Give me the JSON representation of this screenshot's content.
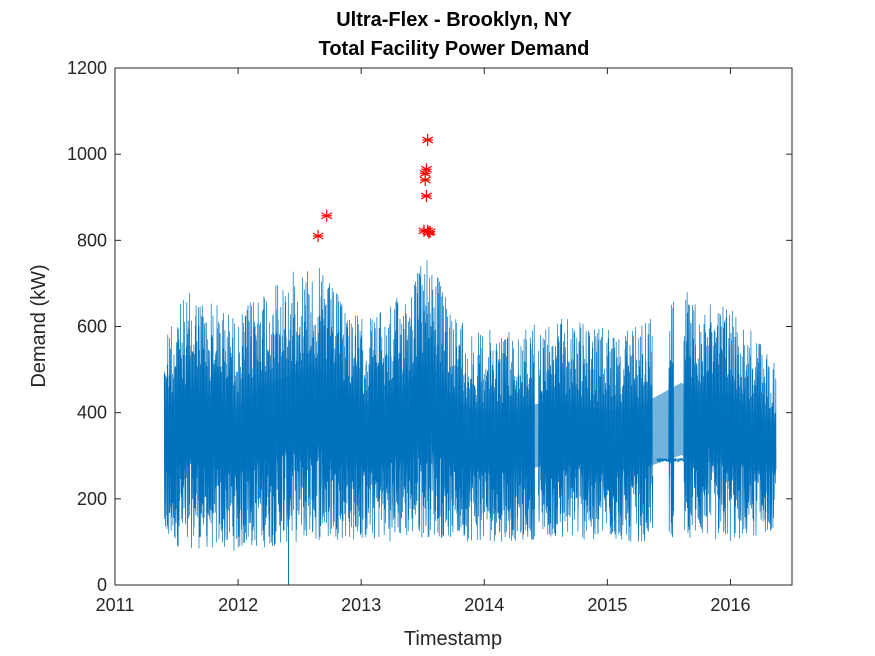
{
  "chart_data": {
    "type": "line",
    "title_lines": [
      "Ultra-Flex - Brooklyn, NY",
      "Total Facility Power Demand"
    ],
    "xlabel": "Timestamp",
    "ylabel": "Demand (kW)",
    "xlim": [
      2011,
      2016.5
    ],
    "ylim": [
      0,
      1200
    ],
    "xticks": [
      2011,
      2012,
      2013,
      2014,
      2015,
      2016
    ],
    "xtick_labels": [
      "2011",
      "2012",
      "2013",
      "2014",
      "2015",
      "2016"
    ],
    "yticks": [
      0,
      200,
      400,
      600,
      800,
      1000,
      1200
    ],
    "ytick_labels": [
      "0",
      "200",
      "400",
      "600",
      "800",
      "1000",
      "1200"
    ],
    "grid": false,
    "colors": {
      "series": "#0072bd",
      "outliers": "#ff0000",
      "axes": "#262626"
    },
    "series": [
      {
        "style": "line",
        "x_range": [
          2011.4,
          2016.37
        ],
        "gaps": [
          [
            2014.41,
            2014.44
          ],
          [
            2015.37,
            2015.4
          ]
        ],
        "flat_segments": [
          {
            "x": [
              2015.39,
              2015.5
            ],
            "y": 290
          },
          {
            "x": [
              2015.54,
              2015.62
            ],
            "y": 290
          }
        ],
        "envelope": [
          {
            "x": 2011.4,
            "min": 90,
            "max": 610
          },
          {
            "x": 2011.6,
            "min": 85,
            "max": 680
          },
          {
            "x": 2011.8,
            "min": 80,
            "max": 660
          },
          {
            "x": 2012.0,
            "min": 78,
            "max": 620
          },
          {
            "x": 2012.2,
            "min": 85,
            "max": 700
          },
          {
            "x": 2012.4,
            "min": 95,
            "max": 720
          },
          {
            "x": 2012.6,
            "min": 100,
            "max": 760
          },
          {
            "x": 2012.8,
            "min": 105,
            "max": 680
          },
          {
            "x": 2013.0,
            "min": 100,
            "max": 620
          },
          {
            "x": 2013.2,
            "min": 100,
            "max": 640
          },
          {
            "x": 2013.4,
            "min": 105,
            "max": 700
          },
          {
            "x": 2013.55,
            "min": 110,
            "max": 780
          },
          {
            "x": 2013.7,
            "min": 105,
            "max": 660
          },
          {
            "x": 2013.9,
            "min": 100,
            "max": 600
          },
          {
            "x": 2014.1,
            "min": 100,
            "max": 590
          },
          {
            "x": 2014.3,
            "min": 100,
            "max": 600
          },
          {
            "x": 2014.5,
            "min": 110,
            "max": 620
          },
          {
            "x": 2014.7,
            "min": 105,
            "max": 620
          },
          {
            "x": 2014.9,
            "min": 100,
            "max": 600
          },
          {
            "x": 2015.1,
            "min": 100,
            "max": 590
          },
          {
            "x": 2015.3,
            "min": 100,
            "max": 620
          },
          {
            "x": 2015.6,
            "min": 110,
            "max": 690
          },
          {
            "x": 2015.8,
            "min": 105,
            "max": 650
          },
          {
            "x": 2016.0,
            "min": 95,
            "max": 660
          },
          {
            "x": 2016.2,
            "min": 110,
            "max": 580
          },
          {
            "x": 2016.37,
            "min": 130,
            "max": 530
          }
        ],
        "spikes": [
          {
            "x": 2012.41,
            "y": 0
          }
        ]
      },
      {
        "style": "markers",
        "marker": "asterisk",
        "points": [
          {
            "x": 2012.65,
            "y": 810
          },
          {
            "x": 2012.72,
            "y": 857
          },
          {
            "x": 2013.51,
            "y": 822
          },
          {
            "x": 2013.52,
            "y": 955
          },
          {
            "x": 2013.52,
            "y": 940
          },
          {
            "x": 2013.53,
            "y": 965
          },
          {
            "x": 2013.53,
            "y": 903
          },
          {
            "x": 2013.54,
            "y": 1033
          },
          {
            "x": 2013.54,
            "y": 822
          },
          {
            "x": 2013.55,
            "y": 818
          },
          {
            "x": 2013.56,
            "y": 820
          }
        ]
      }
    ]
  }
}
